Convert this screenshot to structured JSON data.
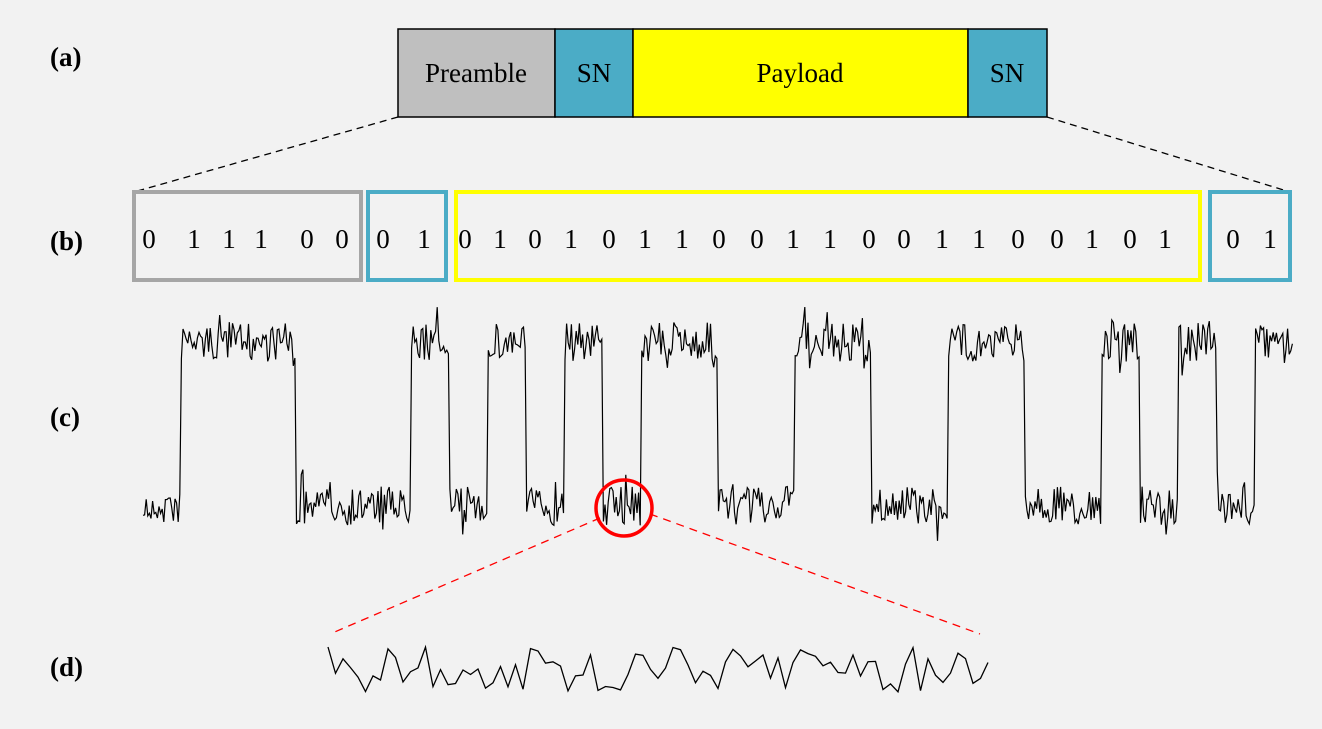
{
  "panel_labels": {
    "a": "(a)",
    "b": "(b)",
    "c": "(c)",
    "d": "(d)"
  },
  "frame": {
    "segments": [
      {
        "label": "Preamble",
        "color": "#bfbfbf"
      },
      {
        "label": "SN",
        "color": "#4bacc6"
      },
      {
        "label": "Payload",
        "color": "#ffff00"
      },
      {
        "label": "SN",
        "color": "#4bacc6"
      }
    ]
  },
  "bits": {
    "groups": [
      {
        "bits": [
          "0",
          "1",
          "1",
          "1",
          "0",
          "0"
        ],
        "border_color": "#a6a6a6"
      },
      {
        "bits": [
          "0",
          "1"
        ],
        "border_color": "#4bacc6"
      },
      {
        "bits": [
          "0",
          "1",
          "0",
          "1",
          "0",
          "1",
          "1",
          "0",
          "0",
          "1",
          "1",
          "0",
          "0",
          "1",
          "1",
          "0",
          "0",
          "1",
          "0",
          "1"
        ],
        "border_color": "#ffff00"
      },
      {
        "bits": [
          "0",
          "1"
        ],
        "border_color": "#4bacc6"
      }
    ]
  },
  "colors": {
    "background": "#f2f2f2",
    "waveform": "#000000",
    "zoom_marker": "#ff0000",
    "dashed_connector": "#000000"
  }
}
